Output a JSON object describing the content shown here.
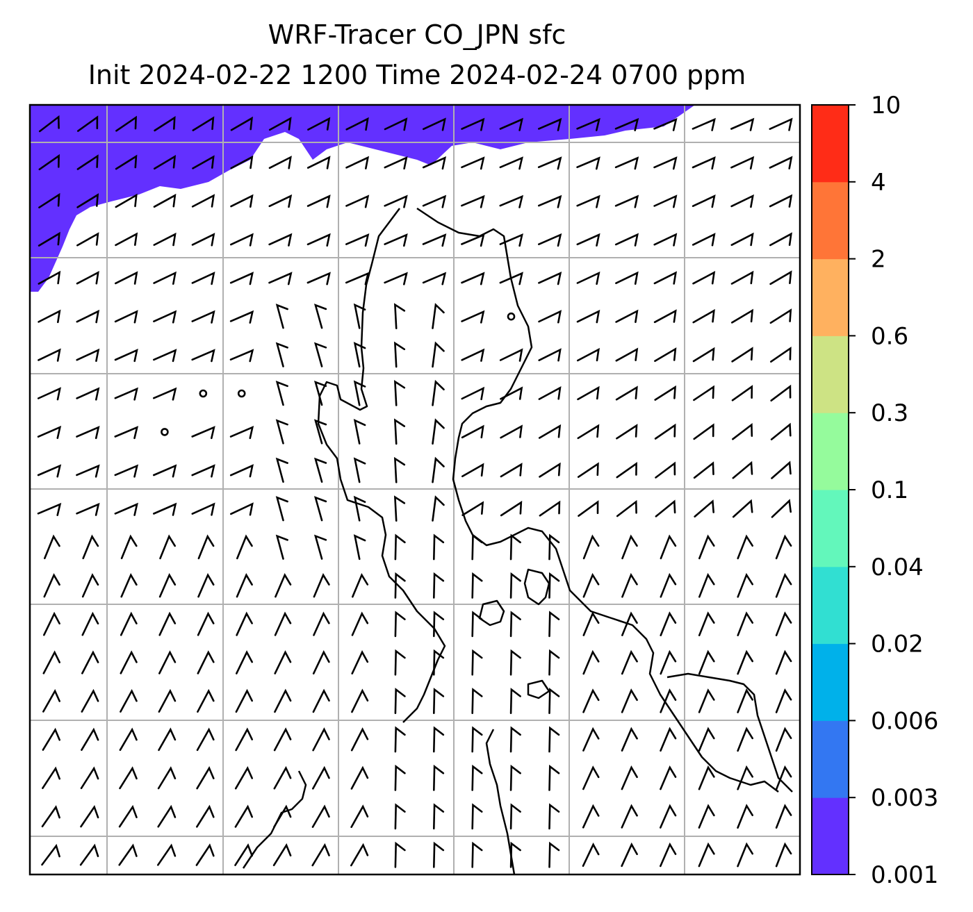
{
  "title": {
    "line1": "WRF-Tracer CO_JPN sfc",
    "line2": "Init 2024-02-22 1200 Time 2024-02-24 0700 ppm"
  },
  "colorbar": {
    "ticks": [
      "0.001",
      "0.003",
      "0.006",
      "0.02",
      "0.04",
      "0.1",
      "0.3",
      "0.6",
      "2",
      "4",
      "10"
    ],
    "colors": [
      "#6330ff",
      "#3377f2",
      "#00b1ea",
      "#31dfd2",
      "#63f7bb",
      "#95fb9c",
      "#cde384",
      "#ffb15f",
      "#ff7537",
      "#ff2c17"
    ]
  },
  "map": {
    "tracer_fill_color": "#6330ff",
    "grid_color": "#b0b0b0",
    "coastline_color": "#000000",
    "wind_barb_color": "#000000"
  }
}
